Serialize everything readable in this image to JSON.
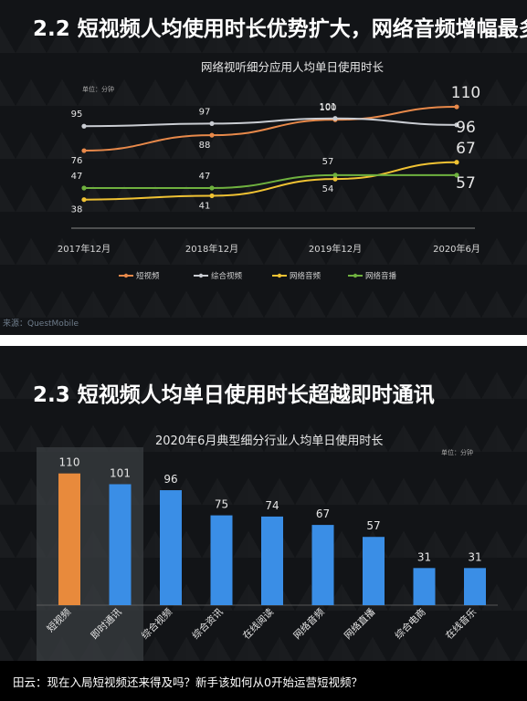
{
  "caption": "田云：现在入局短视频还来得及吗？新手该如何从0开始运营短视频？",
  "chart_data": [
    {
      "type": "line",
      "heading": "2.2 短视频人均使用时长优势扩大，网络音频增幅最多",
      "title": "网络视听细分应用人均单日使用时长",
      "unit": "单位：分钟",
      "source": "来源：QuestMobile",
      "categories": [
        "2017年12月",
        "2018年12月",
        "2019年12月",
        "2020年6月"
      ],
      "ylim": [
        30,
        115
      ],
      "legend_position": "bottom",
      "series": [
        {
          "name": "短视频",
          "color": "#e8894a",
          "values": [
            76,
            88,
            100,
            110
          ],
          "labels": [
            "76",
            "88",
            "100",
            "110"
          ]
        },
        {
          "name": "综合视频",
          "color": "#c9ccd2",
          "values": [
            95,
            97,
            101,
            96
          ],
          "labels": [
            "95",
            "97",
            "101",
            "96"
          ]
        },
        {
          "name": "网络音频",
          "color": "#f0c233",
          "values": [
            38,
            41,
            54,
            67
          ],
          "labels": [
            "38",
            "41",
            "54",
            "67"
          ]
        },
        {
          "name": "网络音播",
          "color": "#6fb13f",
          "values": [
            47,
            47,
            57,
            57
          ],
          "labels": [
            "47",
            "47",
            "57",
            "57"
          ]
        }
      ]
    },
    {
      "type": "bar",
      "heading": "2.3 短视频人均单日使用时长超越即时通讯",
      "title": "2020年6月典型细分行业人均单日使用时长",
      "unit": "单位：分钟",
      "categories": [
        "短视频",
        "即时通讯",
        "综合视频",
        "综合资讯",
        "在线阅读",
        "网络音频",
        "网络直播",
        "综合电商",
        "在线音乐"
      ],
      "values": [
        110,
        101,
        96,
        75,
        74,
        67,
        57,
        31,
        31
      ],
      "labels": [
        "110",
        "101",
        "96",
        "75",
        "74",
        "67",
        "57",
        "31",
        "31"
      ],
      "ylim": [
        0,
        125
      ],
      "colors": {
        "highlight": "#e88a3c",
        "default": "#3a8ee6",
        "highlight_box": "#3a3d42"
      }
    }
  ]
}
